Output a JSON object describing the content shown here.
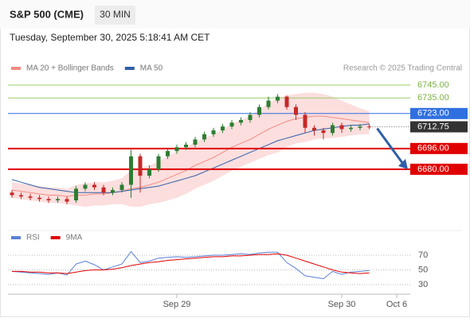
{
  "header": {
    "symbol": "S&P 500 (CME)",
    "interval": "30 MIN",
    "datetime": "Tuesday, September 30, 2025 5:18:41 AM CET"
  },
  "chart_data": [
    {
      "type": "candlestick",
      "source": "Research © 2025 Trading Central",
      "ylim": [
        6637.6,
        6755.4
      ],
      "open": [
        6662,
        6660,
        6659,
        6658,
        6657,
        6656,
        6657,
        6656,
        6665,
        6668,
        6666,
        6662,
        6664,
        6668,
        6690,
        6675,
        6680,
        6690,
        6694,
        6697,
        6699,
        6703,
        6707,
        6710,
        6713,
        6716,
        6718,
        6722,
        6728,
        6733,
        6736,
        6728,
        6722,
        6712,
        6710,
        6708,
        6714,
        6711,
        6712,
        6713,
        null,
        null,
        null
      ],
      "high": [
        6664,
        6662,
        6661,
        6660,
        6659,
        6659,
        6659,
        6667,
        6670,
        6670,
        6668,
        6666,
        6670,
        6695,
        6692,
        6683,
        6692,
        6696,
        6699,
        6701,
        6705,
        6709,
        6712,
        6715,
        6718,
        6720,
        6724,
        6730,
        6736,
        6738,
        6737,
        6730,
        6724,
        6714,
        6712,
        6716,
        6716,
        6714,
        6715,
        6715,
        null,
        null,
        null
      ],
      "low": [
        6658,
        6657,
        6656,
        6655,
        6654,
        6654,
        6653,
        6654,
        6663,
        6664,
        6660,
        6660,
        6662,
        6658,
        6662,
        6673,
        6678,
        6688,
        6692,
        6695,
        6697,
        6701,
        6705,
        6708,
        6711,
        6714,
        6716,
        6720,
        6726,
        6731,
        6726,
        6718,
        6708,
        6706,
        6703,
        6706,
        6708,
        6709,
        6710,
        6711,
        null,
        null,
        null
      ],
      "close": [
        6660,
        6659,
        6658,
        6657,
        6656,
        6657,
        6655,
        6665,
        6668,
        6666,
        6662,
        6664,
        6668,
        6690,
        6675,
        6680,
        6690,
        6694,
        6697,
        6699,
        6703,
        6707,
        6710,
        6713,
        6716,
        6718,
        6722,
        6728,
        6733,
        6736,
        6728,
        6722,
        6712,
        6710,
        6708,
        6714,
        6711,
        6712,
        6713,
        6712.75,
        null,
        null,
        null
      ],
      "up_color": "#2e7d32",
      "down_color": "#c62828",
      "series": [
        {
          "name": "MA 20 + Bollinger Bands",
          "color": "#f28b82",
          "band_color": "#fcdede",
          "values": [
            6664,
            6663,
            6662,
            6661,
            6660,
            6660,
            6659,
            6660,
            6660,
            6661,
            6661,
            6662,
            6663,
            6665,
            6666,
            6668,
            6670,
            6673,
            6676,
            6679,
            6683,
            6686,
            6689,
            6693,
            6697,
            6700,
            6703,
            6707,
            6711,
            6714,
            6717,
            6719,
            6720,
            6721,
            6721,
            6720,
            6719,
            6718,
            6717,
            6716,
            null,
            null,
            null
          ],
          "upper": [
            6670,
            6669,
            6668,
            6667,
            6666,
            6666,
            6665,
            6668,
            6669,
            6670,
            6670,
            6671,
            6673,
            6679,
            6681,
            6683,
            6686,
            6690,
            6694,
            6697,
            6701,
            6704,
            6707,
            6711,
            6715,
            6718,
            6721,
            6726,
            6731,
            6735,
            6737,
            6738,
            6739,
            6739,
            6738,
            6736,
            6733,
            6730,
            6727,
            6725,
            null,
            null,
            null
          ],
          "lower": [
            6658,
            6657,
            6656,
            6655,
            6654,
            6654,
            6653,
            6652,
            6651,
            6652,
            6652,
            6653,
            6653,
            6651,
            6651,
            6653,
            6654,
            6656,
            6658,
            6661,
            6665,
            6668,
            6671,
            6675,
            6679,
            6682,
            6685,
            6688,
            6691,
            6693,
            6697,
            6700,
            6701,
            6703,
            6704,
            6704,
            6705,
            6706,
            6707,
            6707,
            null,
            null,
            null
          ]
        },
        {
          "name": "MA 50",
          "color": "#2f5fa8",
          "values": [
            6672,
            6670,
            6668,
            6666,
            6665,
            6664,
            6663,
            6662,
            6662,
            6662,
            6662,
            6662,
            6663,
            6664,
            6665,
            6666,
            6667,
            6669,
            6671,
            6673,
            6675,
            6678,
            6681,
            6684,
            6687,
            6690,
            6693,
            6696,
            6699,
            6702,
            6704,
            6706,
            6708,
            6710,
            6711,
            6712,
            6713,
            6714,
            6714,
            6715,
            null,
            null,
            null
          ]
        }
      ],
      "levels": [
        {
          "value": 6745,
          "label": "6745.00",
          "color": "#9ccc65",
          "boxed": false
        },
        {
          "value": 6735,
          "label": "6735.00",
          "color": "#9ccc65",
          "boxed": false
        },
        {
          "value": 6723,
          "label": "6723.00",
          "color": "#2f6fe0",
          "boxed": true
        },
        {
          "value": 6696,
          "label": "6696.00",
          "color": "#e00000",
          "boxed": true
        },
        {
          "value": 6680,
          "label": "6680.00",
          "color": "#e00000",
          "boxed": true
        }
      ]
    },
    {
      "type": "line",
      "categories": [
        null,
        null,
        null,
        null,
        null,
        null,
        null,
        null,
        null,
        null,
        null,
        null,
        null,
        null,
        null,
        null,
        null,
        null,
        "Sep 29",
        null,
        null,
        null,
        null,
        null,
        null,
        null,
        null,
        null,
        null,
        null,
        null,
        null,
        null,
        null,
        null,
        null,
        "Sep 30",
        null,
        null,
        null,
        null,
        null,
        "Oct 6"
      ],
      "ylim": [
        19.2,
        81.9
      ],
      "yticks": [
        70,
        50,
        30
      ],
      "series": [
        {
          "name": "RSI",
          "color": "#5b7fd6",
          "values": [
            48,
            47,
            46,
            45,
            44,
            46,
            43,
            58,
            62,
            57,
            50,
            54,
            58,
            75,
            60,
            62,
            66,
            67,
            68,
            67,
            68,
            69,
            70,
            70,
            71,
            72,
            71,
            73,
            74,
            74,
            60,
            52,
            42,
            40,
            38,
            48,
            44,
            47,
            48,
            49,
            null,
            null,
            null
          ]
        },
        {
          "name": "9MA",
          "color": "#e00000",
          "values": [
            48,
            48,
            47,
            47,
            46,
            46,
            45,
            47,
            49,
            50,
            50,
            51,
            53,
            56,
            58,
            60,
            61,
            63,
            64,
            65,
            66,
            67,
            68,
            68,
            69,
            69,
            70,
            71,
            71,
            72,
            70,
            66,
            62,
            58,
            54,
            50,
            47,
            46,
            45,
            46,
            null,
            null,
            null
          ]
        }
      ]
    }
  ]
}
